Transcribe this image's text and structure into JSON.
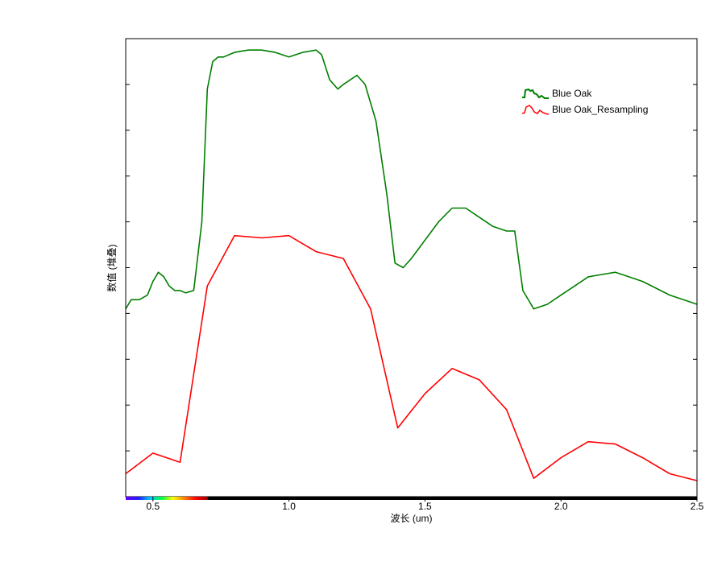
{
  "chart_data": {
    "type": "line",
    "title": "",
    "xlabel": "波长 (um)",
    "ylabel": "数值 (堆叠)",
    "xlim": [
      0.4,
      2.5
    ],
    "ylim": [
      0,
      10
    ],
    "x_ticks": [
      0.5,
      1.0,
      1.5,
      2.0,
      2.5
    ],
    "x_tick_labels": [
      "0.5",
      "1.0",
      "1.5",
      "2.0",
      "2.5"
    ],
    "y_ticks": [
      1,
      2,
      3,
      4,
      5,
      6,
      7,
      8,
      9,
      10
    ],
    "y_tick_labels_visible": false,
    "grid": false,
    "legend": {
      "position": "top-right"
    },
    "wavelength_colorbar": true,
    "series": [
      {
        "name": "Blue Oak",
        "color": "#007f00",
        "x": [
          0.4,
          0.42,
          0.45,
          0.48,
          0.5,
          0.52,
          0.54,
          0.56,
          0.58,
          0.6,
          0.62,
          0.65,
          0.68,
          0.7,
          0.72,
          0.74,
          0.76,
          0.78,
          0.8,
          0.85,
          0.9,
          0.95,
          1.0,
          1.05,
          1.1,
          1.12,
          1.15,
          1.18,
          1.2,
          1.25,
          1.28,
          1.32,
          1.36,
          1.39,
          1.42,
          1.45,
          1.5,
          1.55,
          1.6,
          1.65,
          1.7,
          1.75,
          1.8,
          1.83,
          1.86,
          1.9,
          1.95,
          2.0,
          2.05,
          2.1,
          2.15,
          2.2,
          2.25,
          2.3,
          2.35,
          2.4,
          2.45,
          2.5
        ],
        "values": [
          4.1,
          4.3,
          4.3,
          4.4,
          4.7,
          4.9,
          4.8,
          4.6,
          4.5,
          4.5,
          4.45,
          4.5,
          6.0,
          8.9,
          9.5,
          9.6,
          9.6,
          9.65,
          9.7,
          9.75,
          9.75,
          9.7,
          9.6,
          9.7,
          9.75,
          9.65,
          9.1,
          8.9,
          9.0,
          9.2,
          9.0,
          8.2,
          6.6,
          5.1,
          5.0,
          5.2,
          5.6,
          6.0,
          6.3,
          6.3,
          6.1,
          5.9,
          5.8,
          5.8,
          4.5,
          4.1,
          4.2,
          4.4,
          4.6,
          4.8,
          4.85,
          4.9,
          4.8,
          4.7,
          4.55,
          4.4,
          4.3,
          4.2
        ]
      },
      {
        "name": "Blue Oak_Resampling",
        "color": "#ff0000",
        "x": [
          0.4,
          0.5,
          0.6,
          0.7,
          0.8,
          0.9,
          1.0,
          1.1,
          1.2,
          1.3,
          1.4,
          1.5,
          1.6,
          1.7,
          1.8,
          1.9,
          2.0,
          2.1,
          2.2,
          2.3,
          2.4,
          2.5
        ],
        "values": [
          0.5,
          0.95,
          0.75,
          4.6,
          5.7,
          5.65,
          5.7,
          5.35,
          5.2,
          4.1,
          1.5,
          2.25,
          2.8,
          2.55,
          1.9,
          0.4,
          0.85,
          1.2,
          1.15,
          0.85,
          0.5,
          0.35
        ]
      }
    ]
  }
}
